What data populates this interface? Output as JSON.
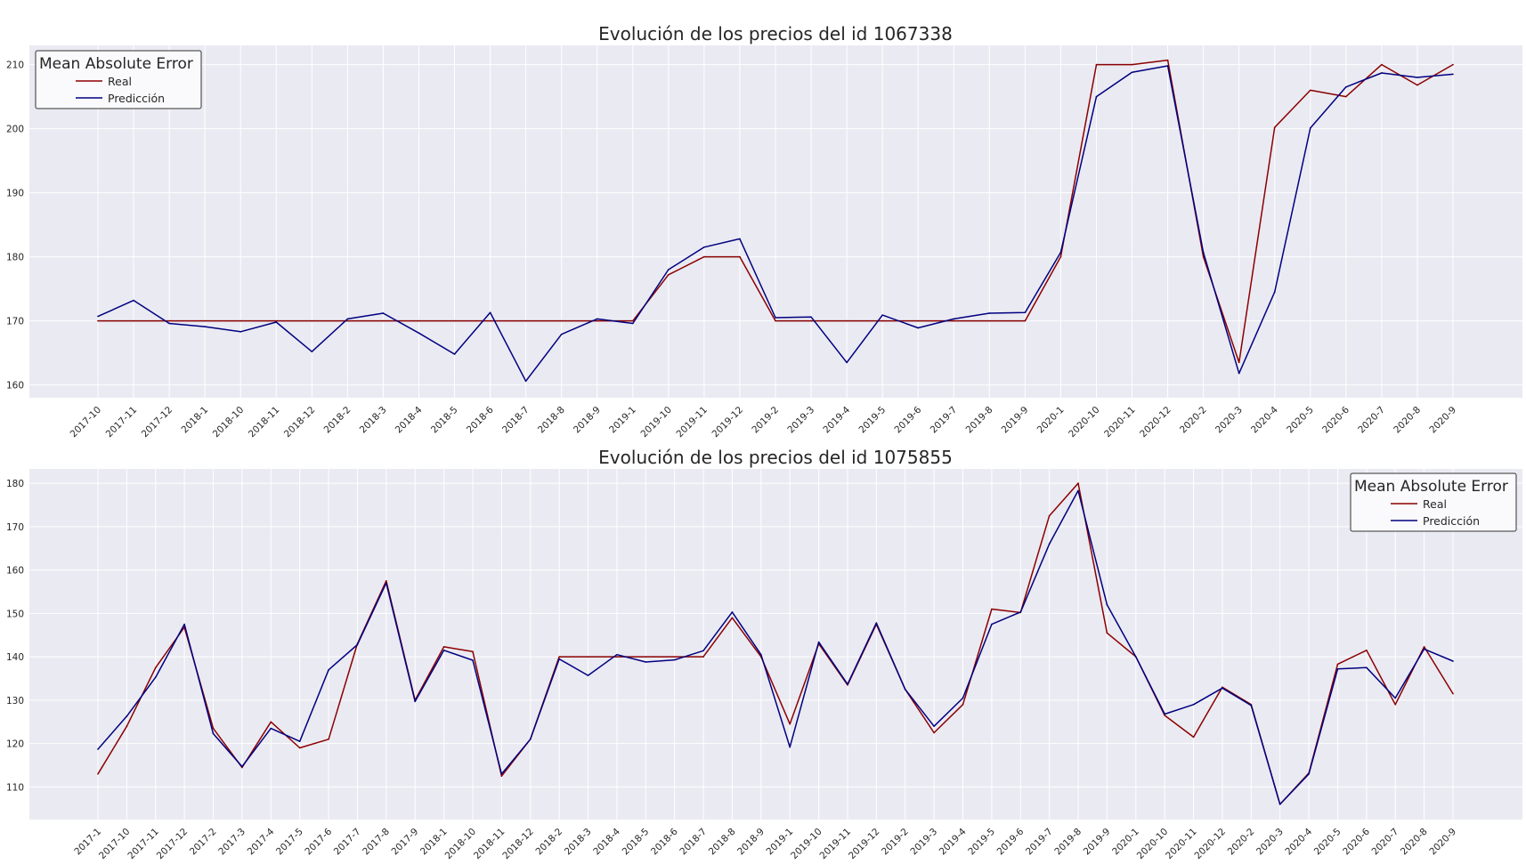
{
  "colors": {
    "real": "#8b0000",
    "pred": "#000080",
    "panel_bg": "#eaeaf2",
    "grid": "#ffffff"
  },
  "chart_data": [
    {
      "type": "line",
      "title": "Evolución de los precios del id 1067338",
      "categories": [
        "2017-10",
        "2017-11",
        "2017-12",
        "2018-1",
        "2018-10",
        "2018-11",
        "2018-12",
        "2018-2",
        "2018-3",
        "2018-4",
        "2018-5",
        "2018-6",
        "2018-7",
        "2018-8",
        "2018-9",
        "2019-1",
        "2019-10",
        "2019-11",
        "2019-12",
        "2019-2",
        "2019-3",
        "2019-4",
        "2019-5",
        "2019-6",
        "2019-7",
        "2019-8",
        "2019-9",
        "2020-1",
        "2020-10",
        "2020-11",
        "2020-12",
        "2020-2",
        "2020-3",
        "2020-4",
        "2020-5",
        "2020-6",
        "2020-7",
        "2020-8",
        "2020-9"
      ],
      "yticks": [
        160,
        170,
        180,
        190,
        200,
        210
      ],
      "ylim": [
        158,
        213
      ],
      "grid": true,
      "legend": {
        "title": "Mean Absolute Error",
        "placement": "top-left"
      },
      "series": [
        {
          "name": "Real",
          "color": "#8b0000",
          "values": [
            170,
            170,
            170,
            170,
            170,
            170,
            170,
            170,
            170,
            170,
            170,
            170,
            170,
            170,
            170,
            170,
            177.2,
            180,
            180,
            170,
            170,
            170,
            170,
            170,
            170,
            170,
            170,
            180,
            210,
            210,
            210.7,
            180,
            163.5,
            200.2,
            206,
            205,
            210,
            206.8,
            210
          ]
        },
        {
          "name": "Predicción",
          "color": "#000080",
          "values": [
            170.7,
            173.2,
            169.6,
            169.1,
            168.3,
            169.8,
            165.2,
            170.3,
            171.2,
            168.1,
            164.8,
            171.3,
            160.6,
            167.9,
            170.3,
            169.6,
            178,
            181.5,
            182.8,
            170.5,
            170.6,
            163.5,
            170.9,
            168.9,
            170.3,
            171.2,
            171.3,
            180.7,
            205,
            208.8,
            209.8,
            180.7,
            161.8,
            174.5,
            200.1,
            206.5,
            208.7,
            208,
            208.5
          ]
        }
      ]
    },
    {
      "type": "line",
      "title": "Evolución de los precios del id 1075855",
      "categories": [
        "2017-1",
        "2017-10",
        "2017-11",
        "2017-12",
        "2017-2",
        "2017-3",
        "2017-4",
        "2017-5",
        "2017-6",
        "2017-7",
        "2017-8",
        "2017-9",
        "2018-1",
        "2018-10",
        "2018-11",
        "2018-12",
        "2018-2",
        "2018-3",
        "2018-4",
        "2018-5",
        "2018-6",
        "2018-7",
        "2018-8",
        "2018-9",
        "2019-1",
        "2019-10",
        "2019-11",
        "2019-12",
        "2019-2",
        "2019-3",
        "2019-4",
        "2019-5",
        "2019-6",
        "2019-7",
        "2019-8",
        "2019-9",
        "2020-1",
        "2020-10",
        "2020-11",
        "2020-12",
        "2020-2",
        "2020-3",
        "2020-4",
        "2020-5",
        "2020-6",
        "2020-7",
        "2020-8",
        "2020-9"
      ],
      "yticks": [
        110,
        120,
        130,
        140,
        150,
        160,
        170,
        180
      ],
      "ylim": [
        102.5,
        183.3
      ],
      "grid": true,
      "legend": {
        "title": "Mean Absolute Error",
        "placement": "top-right"
      },
      "series": [
        {
          "name": "Real",
          "color": "#8b0000",
          "values": [
            113,
            124,
            137.5,
            146.8,
            123.5,
            114.5,
            125,
            119,
            121,
            143,
            157.5,
            130,
            142.3,
            141.2,
            112.5,
            121,
            140,
            140,
            140,
            140,
            140,
            140,
            149,
            140,
            124.5,
            143,
            133.5,
            147.5,
            132.5,
            122.5,
            129,
            151,
            150.2,
            172.5,
            180,
            145.5,
            140,
            126.5,
            121.5,
            133,
            129,
            106,
            113.2,
            138.3,
            141.5,
            129,
            142.3,
            131.5
          ]
        },
        {
          "name": "Predicción",
          "color": "#000080",
          "values": [
            118.7,
            126.3,
            135.3,
            147.5,
            122.3,
            114.7,
            123.5,
            120.5,
            137,
            142.8,
            157,
            129.7,
            141.5,
            139.2,
            113,
            121,
            139.5,
            135.7,
            140.5,
            138.8,
            139.3,
            141.4,
            150.3,
            140.5,
            119.2,
            143.4,
            133.7,
            147.8,
            132.5,
            124,
            130.5,
            147.5,
            150.3,
            166,
            178.3,
            152,
            140,
            126.8,
            129,
            132.8,
            128.8,
            106,
            113,
            137.2,
            137.5,
            130.5,
            141.8,
            139
          ]
        }
      ]
    }
  ]
}
